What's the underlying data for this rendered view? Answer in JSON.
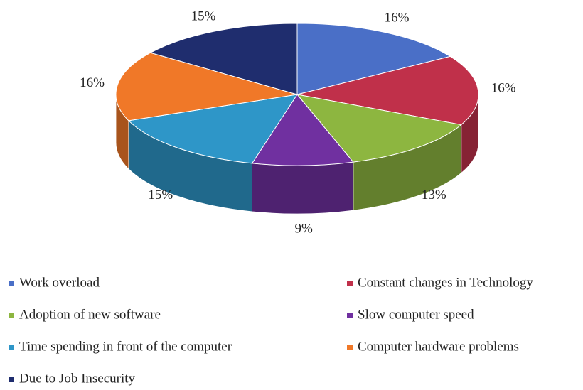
{
  "chart_data": {
    "type": "pie3d",
    "categories": [
      "Work overload",
      "Constant changes in Technology",
      "Adoption of new software",
      "Slow computer speed",
      "Time spending in front of the computer",
      "Computer hardware problems",
      "Due to Job Insecurity"
    ],
    "values": [
      16,
      16,
      13,
      9,
      15,
      16,
      15
    ],
    "value_labels": [
      "16%",
      "16%",
      "13%",
      "9%",
      "15%",
      "16%",
      "15%"
    ],
    "colors": [
      "#4a6fc7",
      "#c0304a",
      "#8db640",
      "#7030a0",
      "#2e96c8",
      "#f07828",
      "#1f2d6e"
    ],
    "legend": "bottom"
  }
}
